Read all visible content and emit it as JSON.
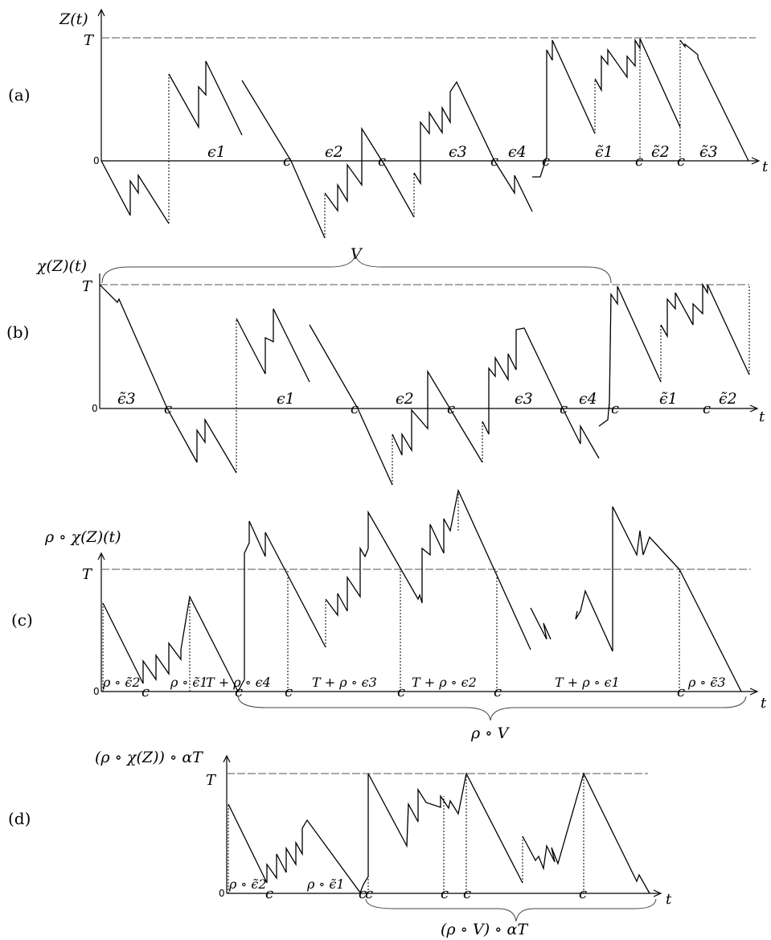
{
  "panels": {
    "a": {
      "tag": "(a)",
      "ylabel": "Z(t)",
      "T": "T",
      "zero": "0",
      "t": "t",
      "segments": [
        "ϵ1",
        "ϵ2",
        "ϵ3",
        "ϵ4",
        "ϵ̃1",
        "ϵ̃2",
        "ϵ̃3"
      ]
    },
    "b": {
      "tag": "(b)",
      "ylabel": "χ(Z)(t)",
      "brace": "V",
      "T": "T",
      "zero": "0",
      "t": "t",
      "segments": [
        "ϵ̃3",
        "ϵ1",
        "ϵ2",
        "ϵ3",
        "ϵ4",
        "ϵ̃1",
        "ϵ̃2"
      ]
    },
    "c": {
      "tag": "(c)",
      "ylabel": "ρ ∘ χ(Z)(t)",
      "T": "T",
      "zero": "0",
      "t": "t",
      "segments": [
        "ρ ∘ ϵ̃2",
        "ρ ∘ ϵ̃1",
        "T + ρ ∘ ϵ4",
        "T + ρ ∘ ϵ3",
        "T + ρ ∘ ϵ2",
        "T + ρ ∘ ϵ1",
        "ρ ∘ ϵ̃3"
      ],
      "brace": "ρ ∘ V"
    },
    "d": {
      "tag": "(d)",
      "ylabel": "(ρ ∘ χ(Z)) ∘ αT",
      "T": "T",
      "zero": "0",
      "t": "t",
      "segments": [
        "ρ ∘ ϵ̃2",
        "ρ ∘ ϵ̃1"
      ],
      "brace": "(ρ ∘ V) ∘ αT"
    }
  }
}
